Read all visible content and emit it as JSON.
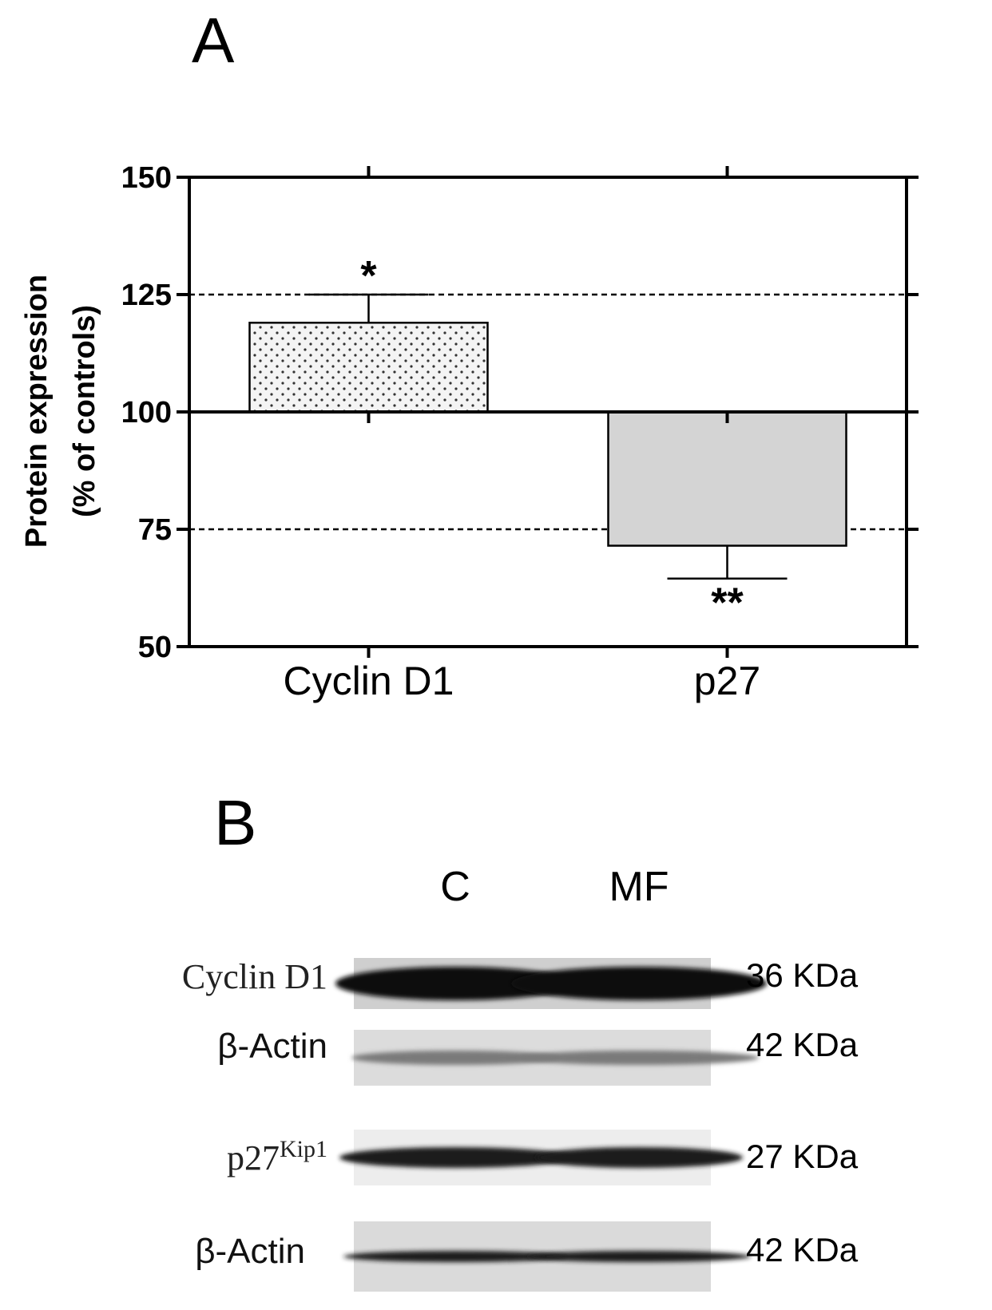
{
  "panels": {
    "a_label": "A",
    "b_label": "B"
  },
  "chart_data": {
    "type": "bar",
    "categories": [
      "Cyclin D1",
      "p27"
    ],
    "values": [
      119,
      71.5
    ],
    "errors": [
      6,
      7
    ],
    "baseline": 100,
    "significance": [
      "*",
      "**"
    ],
    "ylabel_lines": [
      "Protein expression",
      "(% of controls)"
    ],
    "ylim": [
      50,
      150
    ],
    "yticks": [
      50,
      75,
      100,
      125,
      150
    ],
    "reference_lines": [
      125,
      75
    ],
    "grid": false,
    "bar_styles": [
      {
        "fill": "#f4f4f4",
        "pattern": "dots"
      },
      {
        "fill": "#d4d4d4",
        "pattern": "none"
      }
    ]
  },
  "blot": {
    "lanes": [
      "C",
      "MF"
    ],
    "rows": [
      {
        "label": "Cyclin D1",
        "sup": "",
        "size": "36 KDa",
        "font": "serif",
        "band_color": "#0e0e0e",
        "bg": "#cfcfcf"
      },
      {
        "label": "β-Actin",
        "sup": "",
        "size": "42 KDa",
        "font": "sans",
        "band_color": "#7a7a7a",
        "bg": "#dcdcdc"
      },
      {
        "label": "p27",
        "sup": "Kip1",
        "size": "27 KDa",
        "font": "serif",
        "band_color": "#1a1a1a",
        "bg": "#ededed"
      },
      {
        "label": "β-Actin",
        "sup": "",
        "size": "42 KDa",
        "font": "sans",
        "band_color": "#1e1e1e",
        "bg": "#dadada"
      }
    ]
  }
}
